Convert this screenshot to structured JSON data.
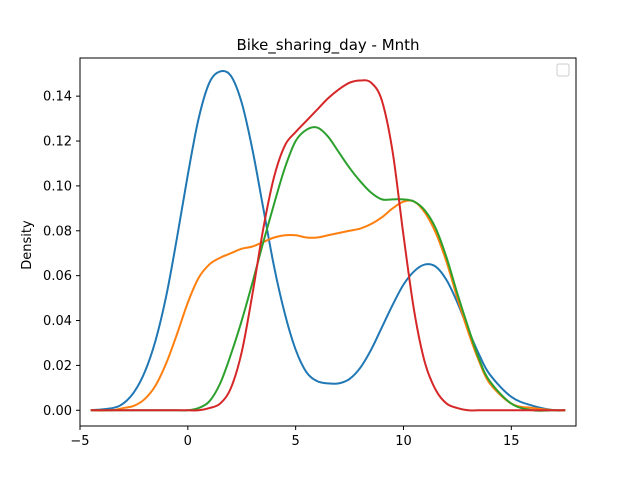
{
  "chart_data": {
    "type": "line",
    "title": "Bike_sharing_day - Mnth",
    "xlabel": "",
    "ylabel": "Density",
    "xlim": [
      -5,
      18
    ],
    "ylim": [
      -0.007,
      0.157
    ],
    "x_ticks": [
      -5,
      0,
      5,
      10,
      15
    ],
    "y_ticks": [
      0.0,
      0.02,
      0.04,
      0.06,
      0.08,
      0.1,
      0.12,
      0.14
    ],
    "x_tick_labels": [
      "−5",
      "0",
      "5",
      "10",
      "15"
    ],
    "y_tick_labels": [
      "0.00",
      "0.02",
      "0.04",
      "0.06",
      "0.08",
      "0.10",
      "0.12",
      "0.14"
    ],
    "grid": false,
    "legend": {
      "placement": "top-right",
      "entries": []
    },
    "series": [
      {
        "color": "#1f77b4",
        "x": [
          -4.5,
          -3.5,
          -3.0,
          -2.5,
          -2.0,
          -1.5,
          -1.0,
          -0.5,
          0.0,
          0.5,
          1.0,
          1.5,
          2.0,
          2.5,
          3.0,
          3.5,
          4.0,
          4.5,
          5.0,
          5.5,
          6.0,
          6.5,
          7.0,
          7.5,
          8.0,
          8.5,
          9.0,
          9.5,
          10.0,
          10.5,
          11.0,
          11.5,
          12.0,
          12.5,
          13.0,
          13.5,
          14.0,
          15.0,
          16.0,
          17.0,
          17.5
        ],
        "y": [
          0.0,
          0.001,
          0.003,
          0.008,
          0.017,
          0.031,
          0.051,
          0.077,
          0.105,
          0.13,
          0.146,
          0.151,
          0.149,
          0.137,
          0.116,
          0.09,
          0.064,
          0.043,
          0.027,
          0.017,
          0.013,
          0.012,
          0.012,
          0.014,
          0.019,
          0.027,
          0.037,
          0.047,
          0.056,
          0.062,
          0.065,
          0.064,
          0.058,
          0.048,
          0.036,
          0.025,
          0.016,
          0.006,
          0.002,
          0.0,
          0.0
        ]
      },
      {
        "color": "#ff7f0e",
        "x": [
          -4.5,
          -3.5,
          -3.0,
          -2.5,
          -2.0,
          -1.5,
          -1.0,
          -0.5,
          0.0,
          0.5,
          1.0,
          1.5,
          2.0,
          2.5,
          3.0,
          3.5,
          4.0,
          4.5,
          5.0,
          5.5,
          6.0,
          6.5,
          7.0,
          7.5,
          8.0,
          8.5,
          9.0,
          9.5,
          10.0,
          10.5,
          11.0,
          11.5,
          12.0,
          12.5,
          13.0,
          13.5,
          14.0,
          15.0,
          16.0,
          17.0,
          17.5
        ],
        "y": [
          0.0,
          0.0,
          0.001,
          0.002,
          0.005,
          0.011,
          0.021,
          0.034,
          0.048,
          0.059,
          0.065,
          0.068,
          0.07,
          0.072,
          0.073,
          0.075,
          0.077,
          0.078,
          0.078,
          0.077,
          0.077,
          0.078,
          0.079,
          0.08,
          0.081,
          0.083,
          0.086,
          0.09,
          0.093,
          0.093,
          0.088,
          0.079,
          0.066,
          0.05,
          0.035,
          0.022,
          0.012,
          0.003,
          0.001,
          0.0,
          0.0
        ]
      },
      {
        "color": "#2ca02c",
        "x": [
          -4.5,
          -3.5,
          -3.0,
          -2.5,
          -2.0,
          -1.5,
          -1.0,
          -0.5,
          0.0,
          0.5,
          1.0,
          1.5,
          2.0,
          2.5,
          3.0,
          3.5,
          4.0,
          4.5,
          5.0,
          5.5,
          6.0,
          6.5,
          7.0,
          7.5,
          8.0,
          8.5,
          9.0,
          9.5,
          10.0,
          10.5,
          11.0,
          11.5,
          12.0,
          12.5,
          13.0,
          13.5,
          14.0,
          15.0,
          16.0,
          17.0,
          17.5
        ],
        "y": [
          0.0,
          0.0,
          0.0,
          0.0,
          0.0,
          0.0,
          0.0,
          0.0,
          0.0,
          0.001,
          0.004,
          0.012,
          0.025,
          0.04,
          0.057,
          0.075,
          0.092,
          0.108,
          0.12,
          0.125,
          0.126,
          0.122,
          0.115,
          0.108,
          0.102,
          0.097,
          0.094,
          0.094,
          0.094,
          0.093,
          0.089,
          0.081,
          0.068,
          0.052,
          0.037,
          0.023,
          0.013,
          0.003,
          0.0,
          0.0,
          0.0
        ]
      },
      {
        "color": "#d62728",
        "x": [
          -4.5,
          -3.5,
          -3.0,
          -2.5,
          -2.0,
          -1.5,
          -1.0,
          -0.5,
          0.0,
          0.5,
          1.0,
          1.5,
          2.0,
          2.5,
          3.0,
          3.5,
          4.0,
          4.5,
          5.0,
          5.5,
          6.0,
          6.5,
          7.0,
          7.5,
          8.0,
          8.5,
          9.0,
          9.5,
          10.0,
          10.5,
          11.0,
          11.5,
          12.0,
          12.5,
          13.0,
          13.5,
          14.0,
          15.0,
          16.0,
          17.0,
          17.5
        ],
        "y": [
          0.0,
          0.0,
          0.0,
          0.0,
          0.0,
          0.0,
          0.0,
          0.0,
          0.0,
          0.0,
          0.001,
          0.003,
          0.01,
          0.026,
          0.052,
          0.081,
          0.104,
          0.118,
          0.124,
          0.129,
          0.134,
          0.139,
          0.143,
          0.146,
          0.147,
          0.146,
          0.138,
          0.115,
          0.078,
          0.044,
          0.021,
          0.009,
          0.003,
          0.001,
          0.0,
          0.0,
          0.0,
          0.0,
          0.0,
          0.0,
          0.0
        ]
      }
    ]
  }
}
